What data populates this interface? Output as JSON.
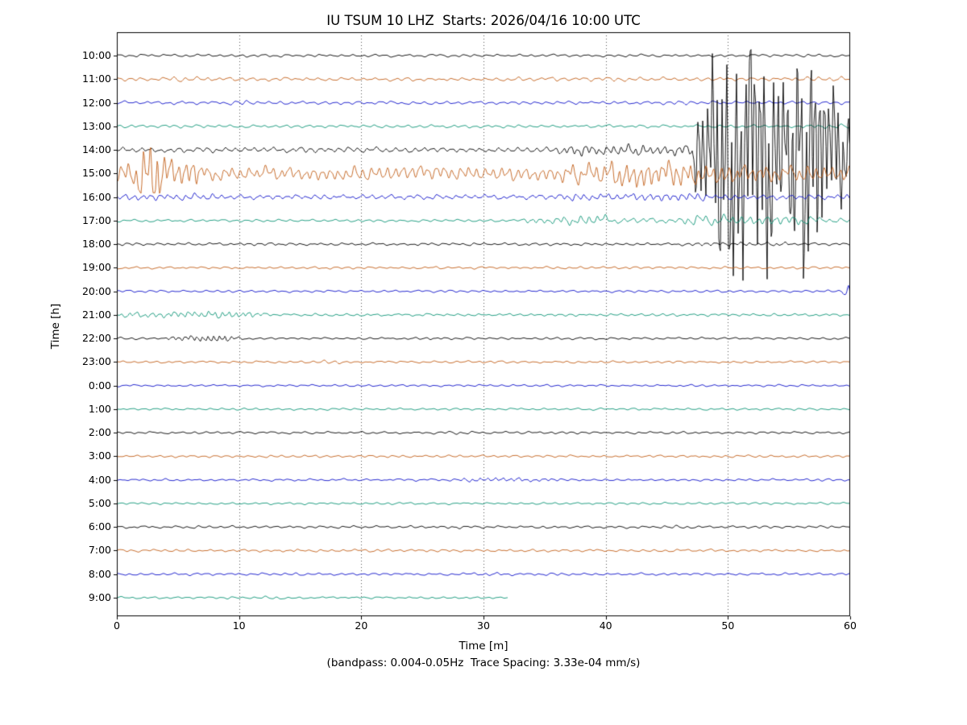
{
  "chart_data": {
    "type": "line",
    "subtype": "helicorder-dayplot",
    "title": "IU TSUM 10 LHZ  Starts: 2026/04/16 10:00 UTC",
    "xlabel": "Time [m]",
    "ylabel": "Time [h]",
    "caption": "(bandpass: 0.004-0.05Hz  Trace Spacing: 3.33e-04 mm/s)",
    "x_range_minutes": [
      0,
      60
    ],
    "x_ticks": [
      0,
      10,
      20,
      30,
      40,
      50,
      60
    ],
    "grid": "vertical dotted lines at 10-minute intervals",
    "legend": "none",
    "colors": [
      "#000000",
      "#c2601a",
      "#0f12c9",
      "#0e9577"
    ],
    "traces": [
      {
        "label": "10:00",
        "base_amp": 1.7
      },
      {
        "label": "11:00",
        "base_amp": 2.3,
        "segments": [
          [
            4,
            8,
            3.2
          ],
          [
            39,
            41,
            3.0
          ],
          [
            55,
            60,
            3.0
          ]
        ]
      },
      {
        "label": "12:00",
        "base_amp": 2.1,
        "segments": [
          [
            4,
            6,
            3.0
          ],
          [
            9,
            11,
            3.2
          ],
          [
            45,
            47,
            3.0
          ]
        ]
      },
      {
        "label": "13:00",
        "base_amp": 1.9,
        "segments": [
          [
            56,
            60,
            3.6
          ]
        ]
      },
      {
        "label": "14:00",
        "base_amp": 3.4,
        "base_freq": 1.3,
        "segments": [
          [
            36,
            47,
            7,
            1.7
          ],
          [
            47,
            48.5,
            85,
            2.6
          ],
          [
            48.5,
            53.5,
            150,
            2.6
          ],
          [
            53.5,
            55,
            95,
            2.6
          ],
          [
            55,
            57.5,
            140,
            2.7
          ],
          [
            57.5,
            59,
            80,
            2.6
          ],
          [
            59,
            60,
            50,
            2.4
          ]
        ]
      },
      {
        "label": "15:00",
        "base_amp": 9.5,
        "base_freq": 1.5,
        "segments": [
          [
            0,
            1.5,
            16,
            1.6
          ],
          [
            1.5,
            3.4,
            44,
            1.8
          ],
          [
            3.4,
            6.5,
            20,
            1.7
          ],
          [
            36,
            40,
            14,
            1.6
          ],
          [
            40,
            47,
            18,
            1.7
          ],
          [
            47,
            53,
            13,
            1.6
          ],
          [
            53,
            60,
            11,
            1.5
          ]
        ]
      },
      {
        "label": "16:00",
        "base_amp": 3.1,
        "base_freq": 1.3,
        "segments": [
          [
            0,
            8,
            4.6,
            1.4
          ],
          [
            36,
            42,
            5,
            1.5
          ],
          [
            42,
            48,
            6,
            1.5
          ],
          [
            48,
            60,
            3.6,
            1.3
          ]
        ]
      },
      {
        "label": "17:00",
        "base_amp": 1.7,
        "base_freq": 1.1,
        "segments": [
          [
            33,
            36,
            4,
            1.5
          ],
          [
            36,
            40,
            6.5,
            1.5
          ],
          [
            40,
            46,
            3.4,
            1.3
          ],
          [
            46,
            57,
            7,
            1.4
          ],
          [
            57,
            60,
            3,
            1.2
          ]
        ]
      },
      {
        "label": "18:00",
        "base_amp": 1.7,
        "base_freq": 1.2,
        "segments": [
          [
            10,
            13,
            2.2
          ],
          [
            47,
            55,
            2.6,
            1.4
          ]
        ]
      },
      {
        "label": "19:00",
        "base_amp": 1.5
      },
      {
        "label": "20:00",
        "base_amp": 1.5,
        "segments": [
          [
            59.4,
            60,
            14,
            2.0
          ]
        ]
      },
      {
        "label": "21:00",
        "base_amp": 1.7,
        "base_freq": 1.2,
        "segments": [
          [
            0,
            4,
            3.6,
            1.6
          ],
          [
            4,
            11,
            4.6,
            1.8
          ],
          [
            11,
            12,
            2.5,
            1.4
          ]
        ]
      },
      {
        "label": "22:00",
        "base_amp": 1.4,
        "segments": [
          [
            4,
            6,
            3.5,
            2.0
          ],
          [
            6,
            9,
            4.8,
            2.2
          ],
          [
            9,
            10,
            2.2,
            1.5
          ],
          [
            25,
            27,
            2,
            1.2
          ]
        ]
      },
      {
        "label": "23:00",
        "base_amp": 1.5,
        "segments": [
          [
            16,
            18,
            2.2
          ]
        ]
      },
      {
        "label": "0:00",
        "base_amp": 1.4
      },
      {
        "label": "1:00",
        "base_amp": 1.4
      },
      {
        "label": "2:00",
        "base_amp": 1.5,
        "segments": [
          [
            27,
            29,
            2.2
          ]
        ]
      },
      {
        "label": "3:00",
        "base_amp": 1.5
      },
      {
        "label": "4:00",
        "base_amp": 1.5,
        "segments": [
          [
            28,
            33,
            2.8,
            1.6
          ],
          [
            33,
            36,
            2.2,
            1.4
          ]
        ]
      },
      {
        "label": "5:00",
        "base_amp": 1.4
      },
      {
        "label": "6:00",
        "base_amp": 1.6,
        "segments": [
          [
            26,
            28,
            2.2
          ],
          [
            44,
            46,
            2.2
          ]
        ]
      },
      {
        "label": "7:00",
        "base_amp": 1.7,
        "segments": [
          [
            13,
            15,
            2.4
          ],
          [
            30,
            32,
            2.2
          ]
        ]
      },
      {
        "label": "8:00",
        "base_amp": 1.6,
        "segments": [
          [
            29,
            32,
            2.4
          ]
        ]
      },
      {
        "label": "9:00",
        "base_amp": 1.4,
        "end_min": 32,
        "segments": [
          [
            11,
            13,
            2.2
          ]
        ]
      }
    ]
  }
}
